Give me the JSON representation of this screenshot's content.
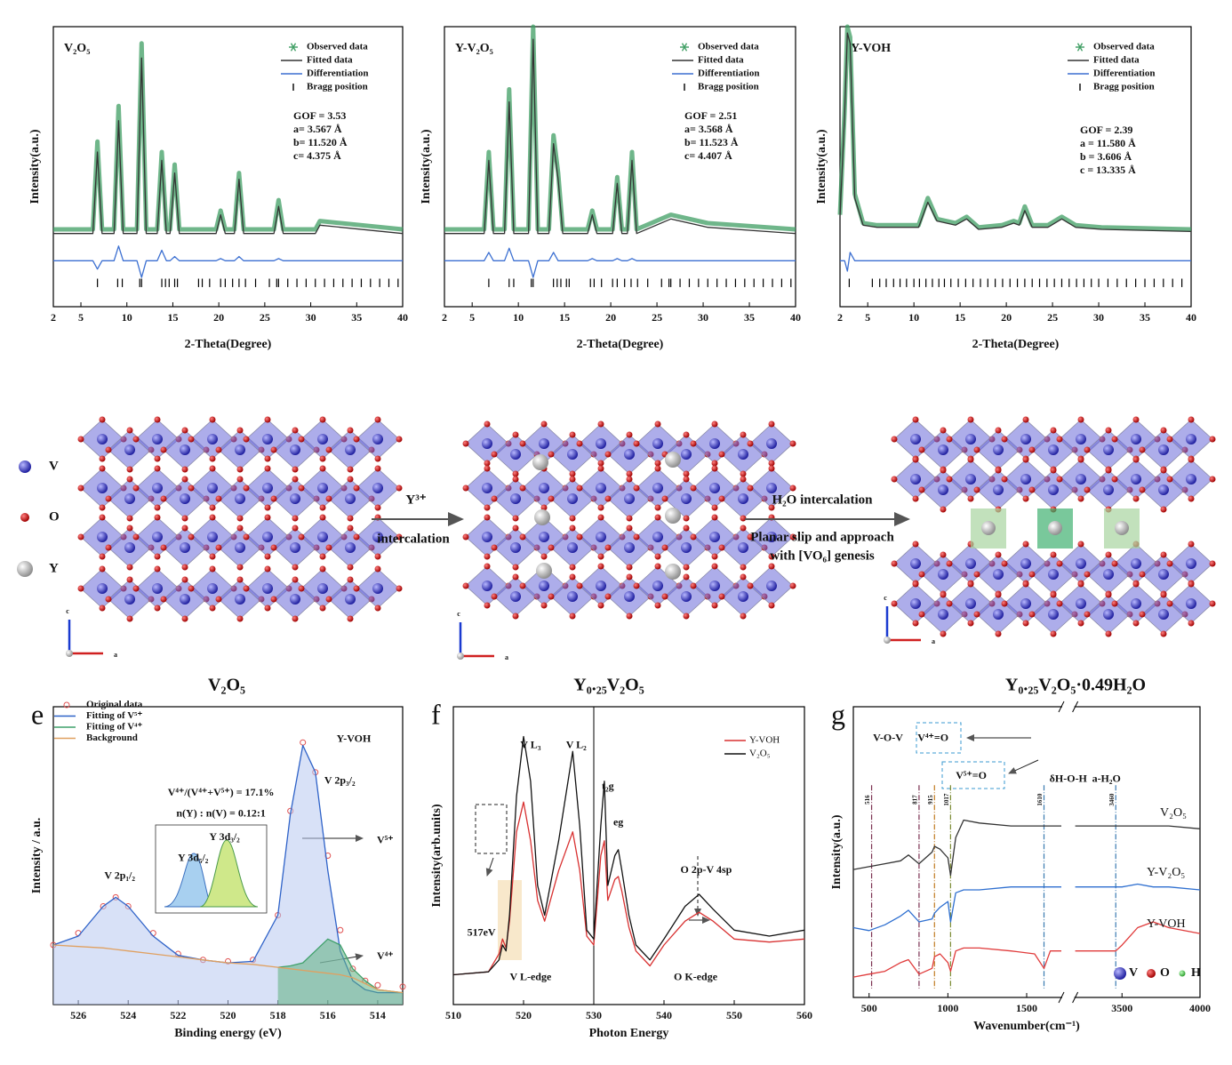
{
  "chart_data": [
    {
      "type": "xrd",
      "title": "V₂O₅",
      "xlabel": "2-Theta(Degree)",
      "ylabel": "Intensity(a.u.)",
      "xlim": [
        2,
        40
      ],
      "xticks": [
        2,
        5,
        10,
        15,
        20,
        25,
        30,
        35,
        40
      ],
      "ylim": [
        -34,
        100
      ],
      "x": [
        2,
        6.3,
        6.8,
        7.3,
        8.6,
        9.1,
        9.6,
        11.1,
        11.6,
        12.1,
        13.3,
        13.8,
        14.3,
        14.7,
        15.2,
        15.7,
        19.7,
        20.2,
        20.7,
        21.7,
        22.2,
        22.7,
        26,
        26.5,
        27,
        30.5,
        31,
        40
      ],
      "series": [
        {
          "name": "Observed data",
          "color": "#3f9e63",
          "marker": "star",
          "values": [
            3,
            3,
            45,
            3,
            3,
            62,
            3,
            3,
            92,
            3,
            3,
            40,
            3,
            3,
            34,
            3,
            3,
            12,
            3,
            3,
            30,
            3,
            3,
            17,
            3,
            3,
            7,
            3
          ]
        },
        {
          "name": "Fitted data",
          "color": "#333333",
          "values": [
            1,
            1,
            40,
            1,
            1,
            55,
            1,
            1,
            85,
            1,
            1,
            36,
            1,
            1,
            30,
            1,
            1,
            10,
            1,
            1,
            27,
            1,
            1,
            14,
            1,
            1,
            5,
            1
          ]
        },
        {
          "name": "Differentiation",
          "color": "#3b6fd1",
          "values": [
            -12,
            -12,
            -16,
            -12,
            -12,
            -5,
            -12,
            -12,
            -20,
            -12,
            -12,
            -7,
            -12,
            -12,
            -10,
            -12,
            -12,
            -11,
            -12,
            -12,
            -10,
            -12,
            -12,
            -11,
            -12,
            -12,
            -12,
            -12
          ]
        },
        {
          "name": "Bragg position",
          "color": "#000000",
          "positions": [
            6.8,
            9.0,
            9.5,
            11.4,
            11.6,
            13.8,
            14.2,
            14.6,
            15.2,
            15.5,
            17.8,
            18.2,
            19.0,
            20.2,
            20.7,
            21.5,
            22.2,
            22.9,
            24.0,
            25.5,
            26.3,
            26.5,
            27.5,
            28.5,
            29.5,
            30.5,
            31.5,
            32.5,
            33.5,
            34.5,
            35.5,
            36.5,
            37.5,
            38.5,
            39.5
          ]
        }
      ],
      "annotations": [
        "GOF = 3.53",
        "a= 3.567 Å",
        "b= 11.520 Å",
        "c=  4.375 Å"
      ]
    },
    {
      "type": "xrd",
      "title": "Y-V₂O₅",
      "xlabel": "2-Theta(Degree)",
      "ylabel": "Intensity(a.u.)",
      "xlim": [
        2,
        40
      ],
      "xticks": [
        2,
        5,
        10,
        15,
        20,
        25,
        30,
        35,
        40
      ],
      "ylim": [
        -34,
        100
      ],
      "x": [
        2,
        6.3,
        6.8,
        7.3,
        8.5,
        9.0,
        9.5,
        11.1,
        11.6,
        12.1,
        13.3,
        13.8,
        14.3,
        14.8,
        17.5,
        18.0,
        18.5,
        20.2,
        20.7,
        21.2,
        21.8,
        22.3,
        22.8,
        26.5,
        30.5,
        40
      ],
      "series": [
        {
          "name": "Observed data",
          "color": "#3f9e63",
          "marker": "star",
          "values": [
            3,
            3,
            40,
            3,
            3,
            70,
            3,
            3,
            100,
            3,
            3,
            48,
            30,
            3,
            3,
            12,
            3,
            3,
            28,
            3,
            3,
            40,
            3,
            10,
            6,
            3
          ]
        },
        {
          "name": "Fitted data",
          "color": "#333333",
          "values": [
            1,
            1,
            36,
            1,
            1,
            64,
            1,
            1,
            94,
            1,
            1,
            44,
            27,
            1,
            1,
            10,
            1,
            1,
            25,
            1,
            1,
            36,
            1,
            8,
            4,
            1
          ]
        },
        {
          "name": "Differentiation",
          "color": "#3b6fd1",
          "values": [
            -12,
            -12,
            -8,
            -12,
            -12,
            -6,
            -12,
            -12,
            -20,
            -12,
            -12,
            -8,
            -12,
            -12,
            -12,
            -11,
            -12,
            -12,
            -11,
            -12,
            -12,
            -11,
            -12,
            -12,
            -12,
            -12
          ]
        },
        {
          "name": "Bragg position",
          "color": "#000000",
          "positions": [
            6.8,
            9.0,
            9.5,
            11.4,
            11.6,
            13.8,
            14.2,
            14.6,
            15.2,
            15.5,
            17.8,
            18.2,
            19.0,
            20.2,
            20.7,
            21.5,
            22.2,
            22.9,
            24.0,
            25.5,
            26.3,
            26.5,
            27.5,
            28.5,
            29.5,
            30.5,
            31.5,
            32.5,
            33.5,
            34.5,
            35.5,
            36.5,
            37.5,
            38.5,
            39.5
          ]
        }
      ],
      "annotations": [
        "GOF = 2.51",
        "a= 3.568 Å",
        "b= 11.523 Å",
        "c=  4.407 Å"
      ]
    },
    {
      "type": "xrd",
      "title": "Y-VOH",
      "xlabel": "2-Theta(Degree)",
      "ylabel": "Intensity(a.u.)",
      "xlim": [
        2,
        40
      ],
      "xticks": [
        2,
        5,
        10,
        15,
        20,
        25,
        30,
        35,
        40
      ],
      "ylim": [
        -34,
        100
      ],
      "x": [
        2,
        2.5,
        2.8,
        3.1,
        3.6,
        4.5,
        6,
        10.5,
        11.5,
        12.5,
        14.5,
        15.7,
        17,
        19.5,
        20.8,
        21.4,
        22,
        22.8,
        24.5,
        26,
        27.5,
        30.3,
        40
      ],
      "series": [
        {
          "name": "Observed data",
          "color": "#3f9e63",
          "marker": "star",
          "values": [
            10,
            60,
            100,
            95,
            20,
            6,
            5,
            5,
            18,
            8,
            6,
            9,
            4,
            5,
            7,
            6,
            14,
            5,
            5,
            9,
            5,
            4,
            3
          ]
        },
        {
          "name": "Fitted data",
          "color": "#333333",
          "values": [
            9,
            58,
            97,
            92,
            18,
            5,
            4,
            4,
            16,
            7,
            5,
            8,
            3,
            4,
            6,
            5,
            12,
            4,
            4,
            8,
            4,
            3,
            2
          ]
        },
        {
          "name": "Differentiation",
          "color": "#3b6fd1",
          "values": [
            -12,
            -12,
            -17,
            -8,
            -12,
            -12,
            -12,
            -12,
            -12,
            -12,
            -12,
            -12,
            -12,
            -12,
            -12,
            -12,
            -12,
            -12,
            -12,
            -12,
            -12,
            -12,
            -12
          ]
        },
        {
          "name": "Bragg position",
          "color": "#000000",
          "positions": [
            3,
            5.5,
            6.3,
            7,
            7.8,
            8.5,
            9.2,
            10,
            10.6,
            11.3,
            12,
            12.7,
            13.3,
            14,
            14.8,
            15.6,
            16.4,
            17.2,
            18,
            18.8,
            19.6,
            20.4,
            21.2,
            22,
            22.8,
            23.6,
            24.4,
            25.2,
            26,
            26.8,
            27.6,
            28.4,
            29.2,
            30,
            31,
            32,
            33,
            34,
            35,
            36,
            37,
            38,
            39
          ]
        }
      ],
      "annotations": [
        "GOF = 2.39",
        "a = 11.580 Å",
        "b = 3.606 Å",
        "c = 13.335 Å"
      ]
    },
    {
      "type": "xps",
      "panel_label": "e",
      "xlabel": "Binding energy (eV)",
      "ylabel": "Intensity / a.u.",
      "xlim": [
        527,
        513
      ],
      "xticks": [
        526,
        524,
        522,
        520,
        518,
        516,
        514
      ],
      "ylim": [
        0,
        100
      ],
      "x": [
        527,
        526,
        525,
        524.5,
        524,
        523,
        522,
        521,
        520,
        519,
        518,
        517.5,
        517,
        516.5,
        516,
        515.5,
        515,
        514.5,
        514,
        513
      ],
      "series": [
        {
          "name": "Original data",
          "color": "#e05050",
          "marker": "circle",
          "values": [
            20,
            24,
            33,
            36,
            33,
            24,
            17,
            15,
            14.5,
            15,
            30,
            65,
            88,
            78,
            50,
            25,
            12,
            8,
            6.5,
            6
          ]
        },
        {
          "name": "Fitting of V⁵⁺",
          "color": "#2e62c8",
          "fill": "#b8c8f0",
          "values": [
            20,
            23,
            33,
            36,
            33,
            23,
            16.5,
            15,
            14,
            14.5,
            30,
            64,
            87,
            78,
            45,
            18,
            8,
            5,
            4,
            4
          ]
        },
        {
          "name": "Fitting of V⁴⁺",
          "color": "#3fa06a",
          "fill": "#5fb07f",
          "values": [
            null,
            null,
            null,
            null,
            null,
            null,
            null,
            null,
            null,
            null,
            12.5,
            13,
            14,
            18,
            22,
            20,
            12,
            8,
            5,
            4
          ]
        },
        {
          "name": "Background",
          "color": "#e0a060",
          "values": [
            20,
            19.5,
            19,
            18.5,
            18,
            17,
            16,
            15,
            14,
            13.5,
            12.5,
            12,
            11.5,
            11,
            10.5,
            10,
            9,
            7,
            5,
            4
          ]
        }
      ],
      "annotations": [
        "Y-VOH",
        "V⁴⁺/(V⁴⁺+V⁵⁺) = 17.1%",
        "n(Y) : n(V) = 0.12:1",
        "V 2p₃/₂",
        "V 2p₁/₂",
        "V⁵⁺",
        "V⁴⁺",
        "Y 3d₅/₂",
        "Y 3d₃/₂"
      ]
    },
    {
      "type": "xas",
      "panel_label": "f",
      "xlabel": "Photon Energy",
      "ylabel": "Intensity(arb.units)",
      "xlim": [
        510,
        560
      ],
      "xticks": [
        510,
        520,
        530,
        540,
        550,
        560
      ],
      "ylim": [
        0,
        100
      ],
      "x": [
        510,
        515,
        516.5,
        517,
        517.5,
        518,
        519,
        520,
        521,
        522,
        523,
        525,
        527,
        528,
        529,
        530,
        531,
        531.5,
        532,
        533,
        533.5,
        534,
        535,
        536,
        538,
        540,
        543,
        545,
        547,
        550,
        555,
        560
      ],
      "series": [
        {
          "name": "Y-VOH",
          "color": "#d83030",
          "values": [
            10,
            11,
            17,
            22,
            19,
            28,
            58,
            68,
            55,
            35,
            28,
            45,
            58,
            45,
            23,
            20,
            50,
            55,
            35,
            42,
            43,
            38,
            26,
            18,
            13,
            20,
            28,
            31,
            28,
            22,
            21,
            22
          ]
        },
        {
          "name": "V₂O₅",
          "color": "#111111",
          "values": [
            10,
            11,
            15,
            20,
            18,
            30,
            70,
            90,
            75,
            40,
            30,
            55,
            85,
            60,
            25,
            22,
            60,
            75,
            40,
            50,
            52,
            45,
            30,
            20,
            15,
            22,
            33,
            37,
            32,
            25,
            23,
            25
          ]
        }
      ],
      "annotations": [
        "V L₃",
        "V L₂",
        "t₂g",
        "eg",
        "O 2p-V 4sp",
        "517eV",
        "V L-edge",
        "O K-edge"
      ]
    },
    {
      "type": "ftir",
      "panel_label": "g",
      "xlabel": "Wavenumber(cm⁻¹)",
      "ylabel": "Intensity(a.u.)",
      "xlim": [
        400,
        4000
      ],
      "xbreak": [
        1720,
        3200
      ],
      "xticks": [
        500,
        1000,
        1500,
        3500,
        4000
      ],
      "ylim": [
        0,
        100
      ],
      "x": [
        400,
        500,
        600,
        700,
        750,
        817,
        900,
        915,
        950,
        1000,
        1017,
        1050,
        1100,
        1200,
        1400,
        1550,
        1610,
        1650,
        1720,
        3200,
        3460,
        3500,
        3600,
        3700,
        3800,
        4000
      ],
      "series": [
        {
          "name": "V₂O₅",
          "color": "#333333",
          "values": [
            44,
            45,
            46,
            47,
            49,
            46,
            50,
            52,
            51,
            48,
            42,
            55,
            61,
            60,
            59,
            59,
            59,
            59,
            59,
            59,
            59,
            59,
            59,
            59,
            59,
            58
          ]
        },
        {
          "name": "Y-V₂O₅",
          "color": "#2e6fd0",
          "values": [
            24,
            23,
            25,
            28,
            30,
            26,
            27,
            29,
            31,
            33,
            26,
            36,
            37,
            37,
            38,
            38,
            38,
            38,
            38,
            38,
            38,
            38,
            39,
            38,
            38,
            37
          ]
        },
        {
          "name": "Y-VOH",
          "color": "#e03b3b",
          "values": [
            7,
            8,
            9,
            12,
            13,
            8,
            10,
            14,
            15,
            12,
            9,
            16,
            17,
            17,
            16,
            15,
            10,
            16,
            16,
            16,
            16,
            18,
            24,
            26,
            24,
            22
          ]
        }
      ],
      "vlines": [
        516,
        817,
        915,
        1017,
        1610,
        3460
      ],
      "vline_colors": [
        "#7a3050",
        "#7a3050",
        "#c07a20",
        "#7a8a30",
        "#3a7ab0",
        "#3a7ab0"
      ],
      "annotations": [
        "V-O-V",
        "V⁴⁺=O",
        "V⁵⁺=O",
        "δH-O-H",
        "a-H₂O"
      ],
      "atoms": [
        {
          "name": "V",
          "color": "#4a4ad0"
        },
        {
          "name": "O",
          "color": "#d02020"
        },
        {
          "name": "H",
          "color": "#40c040"
        }
      ]
    }
  ],
  "diagram": {
    "legend": [
      {
        "name": "V",
        "color": "#4a4ad0"
      },
      {
        "name": "O",
        "color": "#d02020"
      },
      {
        "name": "Y",
        "color": "#cfcfcf"
      }
    ],
    "step1": [
      "Y³⁺",
      "intercalation"
    ],
    "step2": [
      "H₂O intercalation",
      "Planar slip and approach",
      "with [VO₆] genesis"
    ],
    "structures": [
      "V₂O₅",
      "Y₀.₂₅V₂O₅",
      "Y₀.₂₅V₂O₅·0.49H₂O"
    ],
    "axes": [
      "c",
      "a"
    ]
  }
}
